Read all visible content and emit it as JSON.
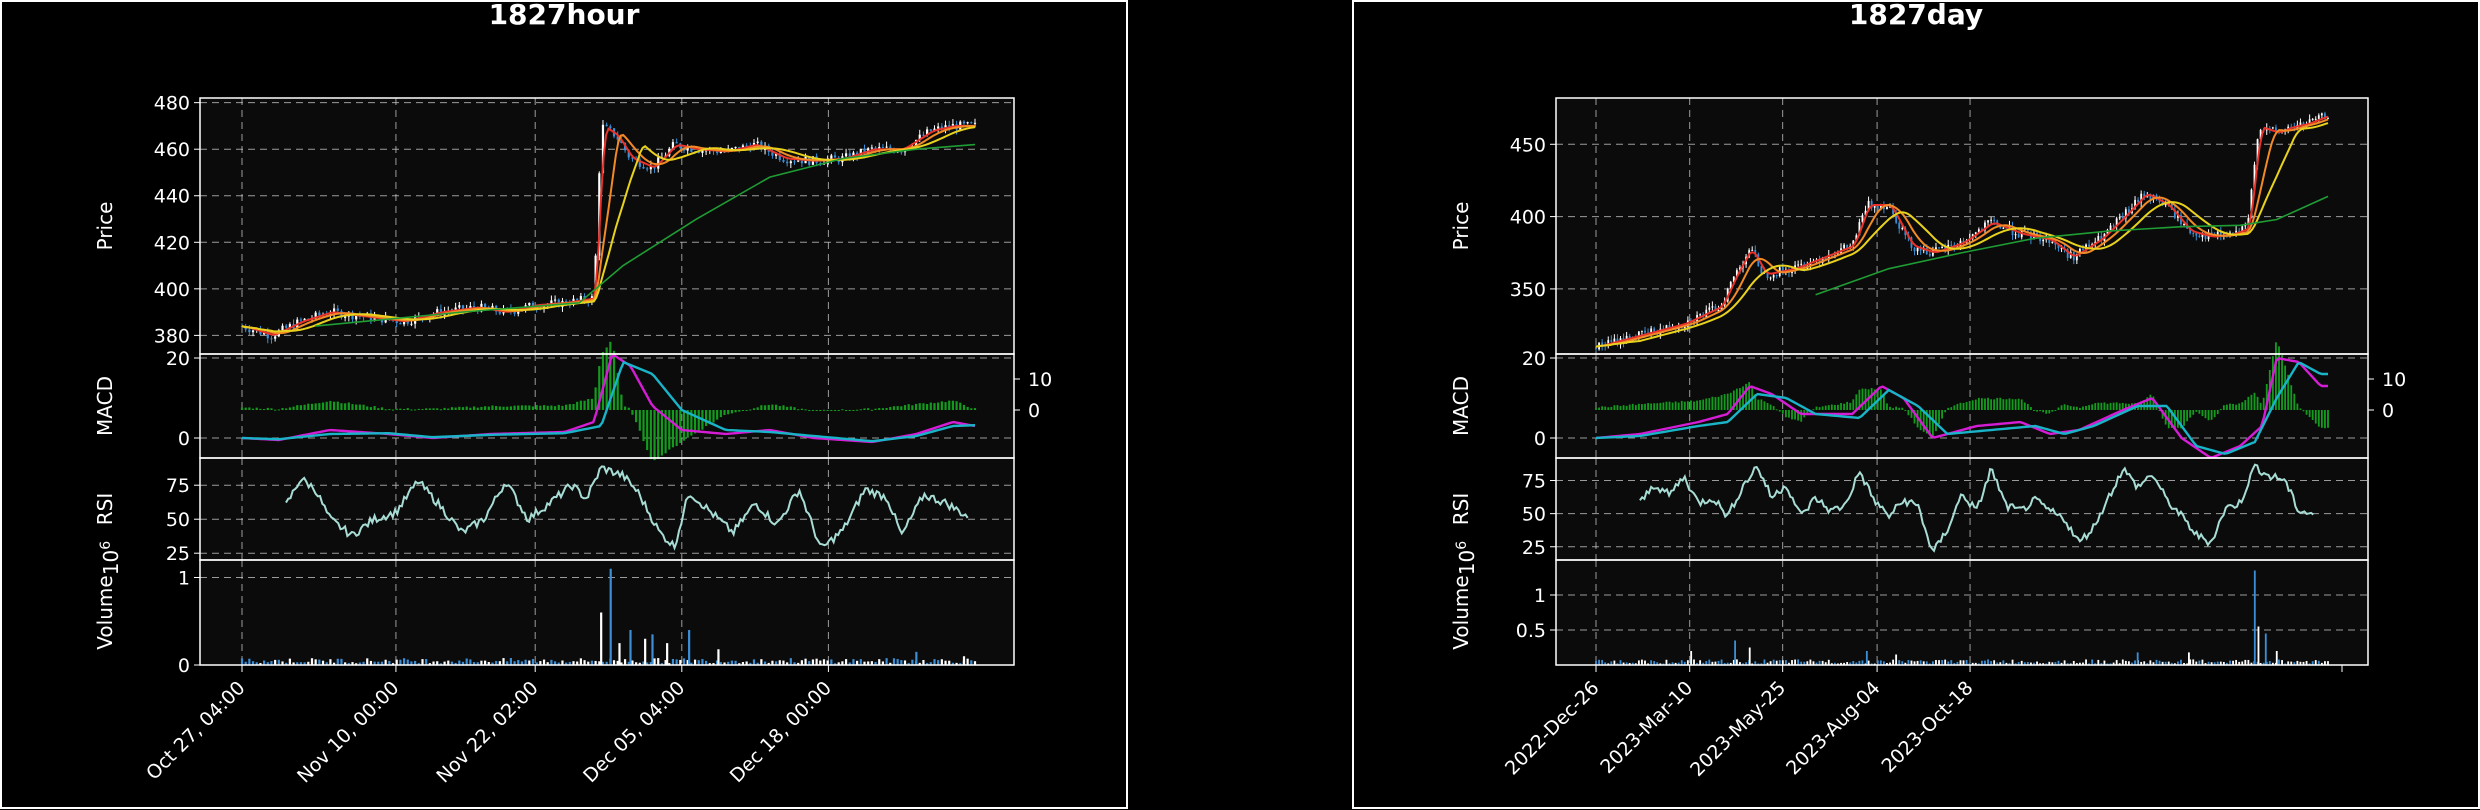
{
  "colors": {
    "background": "#000000",
    "panel": "#0b0b0b",
    "grid": "#cccccc",
    "up": "#ffffff",
    "down": "#3a8fd6",
    "ma_red": "#e8322a",
    "ma_orange": "#f28a25",
    "ma_yellow": "#e8d21e",
    "ma_green": "#1f9d34",
    "macd_line": "#d51dd5",
    "signal_line": "#19b4c8",
    "histogram": "#149b1e",
    "rsi_line": "#a8ddd5"
  },
  "chart_data": [
    {
      "type": "candlestick",
      "title": "1827hour",
      "x_tick_labels": [
        "Oct 27, 04:00",
        "Nov 10, 00:00",
        "Nov 22, 02:00",
        "Dec 05, 04:00",
        "Dec 18, 00:00"
      ],
      "price": {
        "ylabel": "Price",
        "ylim": [
          372,
          482
        ],
        "yticks": [
          380,
          400,
          420,
          440,
          460,
          480
        ],
        "close_path": [
          [
            0,
            384
          ],
          [
            0.04,
            380
          ],
          [
            0.08,
            386
          ],
          [
            0.12,
            390
          ],
          [
            0.17,
            388
          ],
          [
            0.22,
            386
          ],
          [
            0.27,
            390
          ],
          [
            0.32,
            392
          ],
          [
            0.36,
            390
          ],
          [
            0.4,
            393
          ],
          [
            0.44,
            394
          ],
          [
            0.48,
            396
          ],
          [
            0.49,
            470
          ],
          [
            0.51,
            466
          ],
          [
            0.53,
            456
          ],
          [
            0.56,
            452
          ],
          [
            0.59,
            462
          ],
          [
            0.62,
            460
          ],
          [
            0.66,
            459
          ],
          [
            0.7,
            462
          ],
          [
            0.74,
            456
          ],
          [
            0.78,
            455
          ],
          [
            0.82,
            456
          ],
          [
            0.86,
            460
          ],
          [
            0.9,
            460
          ],
          [
            0.94,
            468
          ],
          [
            0.97,
            470
          ],
          [
            1.0,
            470
          ]
        ],
        "ma_green_path": [
          [
            0.1,
            384
          ],
          [
            0.3,
            390
          ],
          [
            0.46,
            394
          ],
          [
            0.52,
            410
          ],
          [
            0.62,
            430
          ],
          [
            0.72,
            448
          ],
          [
            0.82,
            456
          ],
          [
            0.92,
            460
          ],
          [
            1.0,
            462
          ]
        ]
      },
      "macd": {
        "ylabel": "MACD",
        "ylim": [
          -5,
          21
        ],
        "yticks_left": [
          0,
          20
        ],
        "yticks_right": [
          10,
          0
        ],
        "macd_path": [
          [
            0,
            0
          ],
          [
            0.05,
            -0.5
          ],
          [
            0.12,
            2
          ],
          [
            0.2,
            1
          ],
          [
            0.26,
            0
          ],
          [
            0.34,
            1
          ],
          [
            0.44,
            1.5
          ],
          [
            0.48,
            4
          ],
          [
            0.505,
            21
          ],
          [
            0.53,
            18
          ],
          [
            0.56,
            8
          ],
          [
            0.6,
            2
          ],
          [
            0.66,
            1
          ],
          [
            0.72,
            2
          ],
          [
            0.78,
            0
          ],
          [
            0.86,
            -1
          ],
          [
            0.92,
            1
          ],
          [
            0.97,
            4
          ],
          [
            1.0,
            3
          ]
        ],
        "signal_path": [
          [
            0,
            0
          ],
          [
            0.05,
            -0.3
          ],
          [
            0.12,
            1
          ],
          [
            0.2,
            1.2
          ],
          [
            0.26,
            0.2
          ],
          [
            0.34,
            0.8
          ],
          [
            0.44,
            1.2
          ],
          [
            0.49,
            3
          ],
          [
            0.52,
            19
          ],
          [
            0.56,
            16
          ],
          [
            0.6,
            7
          ],
          [
            0.66,
            2
          ],
          [
            0.72,
            1.5
          ],
          [
            0.78,
            0.5
          ],
          [
            0.86,
            -0.8
          ],
          [
            0.92,
            0.5
          ],
          [
            0.97,
            3
          ],
          [
            1.0,
            3.2
          ]
        ]
      },
      "rsi": {
        "ylabel": "RSI",
        "ylim": [
          20,
          95
        ],
        "yticks": [
          25,
          50,
          75
        ],
        "path": [
          [
            0.06,
            60
          ],
          [
            0.08,
            80
          ],
          [
            0.1,
            72
          ],
          [
            0.12,
            50
          ],
          [
            0.15,
            38
          ],
          [
            0.18,
            50
          ],
          [
            0.21,
            55
          ],
          [
            0.24,
            78
          ],
          [
            0.27,
            60
          ],
          [
            0.3,
            40
          ],
          [
            0.33,
            50
          ],
          [
            0.36,
            78
          ],
          [
            0.39,
            50
          ],
          [
            0.42,
            62
          ],
          [
            0.45,
            75
          ],
          [
            0.47,
            65
          ],
          [
            0.49,
            88
          ],
          [
            0.52,
            82
          ],
          [
            0.54,
            70
          ],
          [
            0.57,
            40
          ],
          [
            0.59,
            30
          ],
          [
            0.61,
            70
          ],
          [
            0.64,
            55
          ],
          [
            0.67,
            40
          ],
          [
            0.7,
            62
          ],
          [
            0.73,
            46
          ],
          [
            0.76,
            72
          ],
          [
            0.79,
            28
          ],
          [
            0.82,
            42
          ],
          [
            0.85,
            72
          ],
          [
            0.88,
            66
          ],
          [
            0.9,
            38
          ],
          [
            0.93,
            68
          ],
          [
            0.96,
            62
          ],
          [
            0.99,
            52
          ]
        ]
      },
      "volume": {
        "ylabel": "Volume",
        "multiplier_label": "1e6",
        "ylim": [
          0,
          1.2
        ],
        "yticks": [
          0,
          1
        ],
        "spikes": [
          [
            0.49,
            0.6
          ],
          [
            0.503,
            1.1
          ],
          [
            0.515,
            0.25
          ],
          [
            0.53,
            0.4
          ],
          [
            0.55,
            0.3
          ],
          [
            0.56,
            0.35
          ],
          [
            0.58,
            0.25
          ],
          [
            0.61,
            0.4
          ],
          [
            0.65,
            0.18
          ],
          [
            0.92,
            0.15
          ],
          [
            0.985,
            0.1
          ]
        ]
      }
    },
    {
      "type": "candlestick",
      "title": "1827day",
      "x_tick_labels": [
        "2022-Dec-26",
        "2023-Mar-10",
        "2023-May-25",
        "2023-Aug-04",
        "2023-Oct-18"
      ],
      "price": {
        "ylabel": "Price",
        "ylim": [
          305,
          482
        ],
        "yticks": [
          350,
          400,
          450
        ],
        "close_path": [
          [
            0,
            310
          ],
          [
            0.06,
            318
          ],
          [
            0.12,
            326
          ],
          [
            0.17,
            338
          ],
          [
            0.19,
            360
          ],
          [
            0.21,
            378
          ],
          [
            0.23,
            360
          ],
          [
            0.27,
            364
          ],
          [
            0.31,
            372
          ],
          [
            0.35,
            380
          ],
          [
            0.37,
            408
          ],
          [
            0.4,
            408
          ],
          [
            0.43,
            380
          ],
          [
            0.46,
            375
          ],
          [
            0.5,
            382
          ],
          [
            0.54,
            396
          ],
          [
            0.58,
            388
          ],
          [
            0.62,
            384
          ],
          [
            0.65,
            372
          ],
          [
            0.69,
            385
          ],
          [
            0.72,
            400
          ],
          [
            0.75,
            416
          ],
          [
            0.78,
            408
          ],
          [
            0.81,
            390
          ],
          [
            0.84,
            386
          ],
          [
            0.87,
            388
          ],
          [
            0.89,
            392
          ],
          [
            0.905,
            462
          ],
          [
            0.93,
            458
          ],
          [
            0.95,
            462
          ],
          [
            0.97,
            464
          ],
          [
            1.0,
            470
          ]
        ],
        "ma_green_path": [
          [
            0.3,
            346
          ],
          [
            0.4,
            364
          ],
          [
            0.5,
            375
          ],
          [
            0.6,
            385
          ],
          [
            0.7,
            390
          ],
          [
            0.8,
            393
          ],
          [
            0.88,
            394
          ],
          [
            0.93,
            398
          ],
          [
            1.0,
            414
          ]
        ]
      },
      "macd": {
        "ylabel": "MACD",
        "ylim": [
          -5,
          21
        ],
        "yticks_left": [
          0,
          20
        ],
        "yticks_right": [
          10,
          0
        ],
        "macd_path": [
          [
            0,
            0
          ],
          [
            0.06,
            1
          ],
          [
            0.14,
            4
          ],
          [
            0.18,
            6
          ],
          [
            0.21,
            13
          ],
          [
            0.24,
            11
          ],
          [
            0.28,
            6
          ],
          [
            0.35,
            6
          ],
          [
            0.39,
            13
          ],
          [
            0.42,
            10
          ],
          [
            0.46,
            0
          ],
          [
            0.52,
            3
          ],
          [
            0.58,
            4
          ],
          [
            0.62,
            1
          ],
          [
            0.66,
            2
          ],
          [
            0.72,
            7
          ],
          [
            0.76,
            10
          ],
          [
            0.8,
            0
          ],
          [
            0.84,
            -5
          ],
          [
            0.88,
            -2
          ],
          [
            0.91,
            3
          ],
          [
            0.93,
            20
          ],
          [
            0.96,
            19
          ],
          [
            0.99,
            13
          ]
        ],
        "signal_path": [
          [
            0,
            0
          ],
          [
            0.06,
            0.5
          ],
          [
            0.14,
            3
          ],
          [
            0.18,
            4
          ],
          [
            0.22,
            11
          ],
          [
            0.26,
            10
          ],
          [
            0.3,
            6
          ],
          [
            0.36,
            5
          ],
          [
            0.4,
            12
          ],
          [
            0.44,
            8
          ],
          [
            0.48,
            1
          ],
          [
            0.54,
            2
          ],
          [
            0.6,
            3
          ],
          [
            0.64,
            1
          ],
          [
            0.68,
            3
          ],
          [
            0.74,
            8
          ],
          [
            0.78,
            8
          ],
          [
            0.82,
            -2
          ],
          [
            0.86,
            -4
          ],
          [
            0.9,
            -1
          ],
          [
            0.93,
            10
          ],
          [
            0.96,
            19
          ],
          [
            0.99,
            16
          ]
        ]
      },
      "rsi": {
        "ylabel": "RSI",
        "ylim": [
          15,
          92
        ],
        "yticks": [
          25,
          50,
          75
        ],
        "path": [
          [
            0.06,
            58
          ],
          [
            0.08,
            72
          ],
          [
            0.1,
            64
          ],
          [
            0.12,
            78
          ],
          [
            0.14,
            58
          ],
          [
            0.16,
            62
          ],
          [
            0.18,
            48
          ],
          [
            0.2,
            70
          ],
          [
            0.22,
            86
          ],
          [
            0.24,
            62
          ],
          [
            0.26,
            72
          ],
          [
            0.28,
            48
          ],
          [
            0.3,
            62
          ],
          [
            0.32,
            52
          ],
          [
            0.34,
            56
          ],
          [
            0.36,
            82
          ],
          [
            0.38,
            60
          ],
          [
            0.4,
            48
          ],
          [
            0.42,
            60
          ],
          [
            0.44,
            56
          ],
          [
            0.46,
            20
          ],
          [
            0.48,
            38
          ],
          [
            0.5,
            65
          ],
          [
            0.52,
            52
          ],
          [
            0.54,
            84
          ],
          [
            0.56,
            56
          ],
          [
            0.58,
            52
          ],
          [
            0.6,
            60
          ],
          [
            0.62,
            52
          ],
          [
            0.64,
            46
          ],
          [
            0.66,
            28
          ],
          [
            0.68,
            40
          ],
          [
            0.7,
            62
          ],
          [
            0.72,
            84
          ],
          [
            0.74,
            70
          ],
          [
            0.76,
            80
          ],
          [
            0.78,
            60
          ],
          [
            0.8,
            48
          ],
          [
            0.82,
            34
          ],
          [
            0.84,
            28
          ],
          [
            0.86,
            54
          ],
          [
            0.88,
            58
          ],
          [
            0.9,
            86
          ],
          [
            0.92,
            78
          ],
          [
            0.94,
            76
          ],
          [
            0.96,
            52
          ],
          [
            0.98,
            50
          ]
        ]
      },
      "volume": {
        "ylabel": "Volume",
        "multiplier_label": "1e6",
        "ylim": [
          0,
          1.5
        ],
        "yticks": [
          0.5,
          1.0
        ],
        "spikes": [
          [
            0.13,
            0.2
          ],
          [
            0.19,
            0.35
          ],
          [
            0.21,
            0.25
          ],
          [
            0.37,
            0.2
          ],
          [
            0.41,
            0.15
          ],
          [
            0.74,
            0.18
          ],
          [
            0.81,
            0.18
          ],
          [
            0.9,
            1.35
          ],
          [
            0.905,
            0.55
          ],
          [
            0.915,
            0.45
          ],
          [
            0.93,
            0.2
          ]
        ]
      }
    }
  ]
}
